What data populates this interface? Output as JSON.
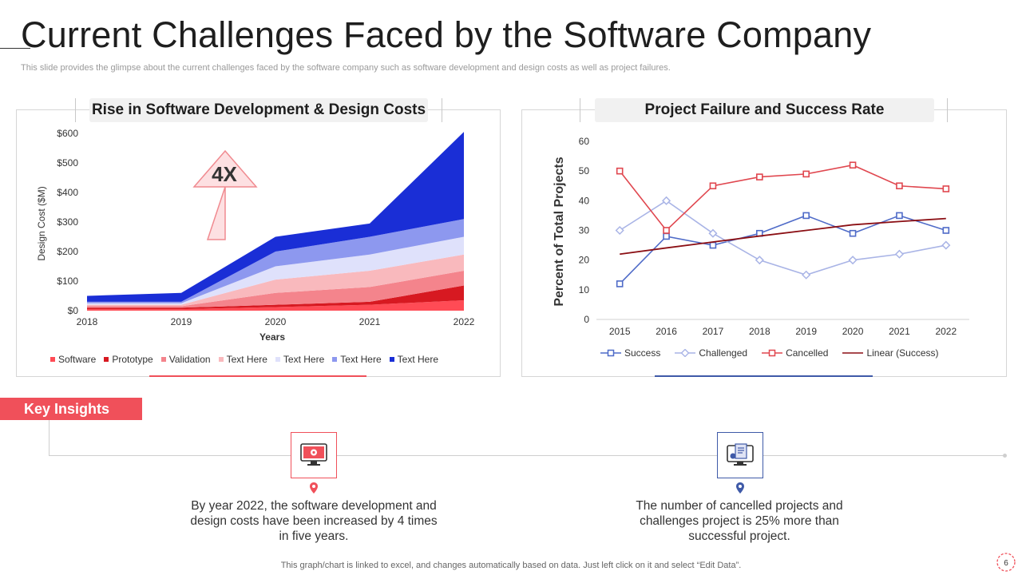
{
  "slide": {
    "title": "Current Challenges Faced by the Software Company",
    "subtitle": "This slide provides the glimpse about the current challenges faced by the software company such as software development and design costs as well as project failures.",
    "footer": "This graph/chart is linked to excel,  and changes automatically based on data. Just left click on it and select “Edit Data”.",
    "page_number": "6"
  },
  "colors": {
    "accent_red": "#f0505a",
    "accent_blue": "#3f5aa8"
  },
  "chart_data": [
    {
      "type": "area",
      "stacked": true,
      "title": "Rise in Software Development & Design Costs",
      "xlabel": "Years",
      "ylabel": "Design Cost ($M)",
      "categories": [
        "2018",
        "2019",
        "2020",
        "2021",
        "2022"
      ],
      "ylim": [
        0,
        600
      ],
      "yticks": [
        "$0",
        "$100",
        "$200",
        "$300",
        "$400",
        "$500",
        "$600"
      ],
      "annotation": "4X",
      "series": [
        {
          "name": "Software",
          "color": "#ff4b55",
          "values": [
            5,
            5,
            12,
            20,
            35
          ]
        },
        {
          "name": "Prototype",
          "color": "#d71921",
          "values": [
            5,
            5,
            8,
            10,
            50
          ]
        },
        {
          "name": "Validation",
          "color": "#f4848c",
          "values": [
            5,
            5,
            40,
            50,
            50
          ]
        },
        {
          "name": "Text Here",
          "color": "#f9b9bd",
          "values": [
            5,
            5,
            45,
            55,
            55
          ]
        },
        {
          "name": "Text Here",
          "color": "#dfe1fb",
          "values": [
            5,
            5,
            45,
            55,
            60
          ]
        },
        {
          "name": "Text Here",
          "color": "#8d98ef",
          "values": [
            5,
            5,
            50,
            60,
            60
          ]
        },
        {
          "name": "Text Here",
          "color": "#1a2ed6",
          "values": [
            20,
            30,
            50,
            45,
            295
          ]
        }
      ]
    },
    {
      "type": "line",
      "title": "Project Failure and Success Rate",
      "ylabel": "Percent of Total Projects",
      "categories": [
        "2015",
        "2016",
        "2017",
        "2018",
        "2019",
        "2020",
        "2021",
        "2022"
      ],
      "ylim": [
        0,
        60
      ],
      "yticks": [
        "0",
        "10",
        "20",
        "30",
        "40",
        "50",
        "60"
      ],
      "series": [
        {
          "name": "Success",
          "color": "#4f6bc8",
          "marker": "square",
          "values": [
            12,
            28,
            25,
            29,
            35,
            29,
            35,
            30
          ]
        },
        {
          "name": "Challenged",
          "color": "#a9b4e6",
          "marker": "diamond",
          "values": [
            30,
            40,
            29,
            20,
            15,
            20,
            22,
            25
          ]
        },
        {
          "name": "Cancelled",
          "color": "#e0474f",
          "marker": "square",
          "values": [
            50,
            30,
            45,
            48,
            49,
            52,
            45,
            44
          ]
        },
        {
          "name": "Linear (Success)",
          "color": "#8b0f14",
          "marker": "none",
          "values": [
            22,
            24.1,
            26.1,
            28.1,
            30,
            31.9,
            33,
            34
          ]
        }
      ]
    }
  ],
  "insights": {
    "label": "Key Insights",
    "items": [
      {
        "text": "By year 2022, the software development and design costs have been increased by 4 times in five years."
      },
      {
        "text": "The number of cancelled projects and challenges project is 25% more than successful project."
      }
    ]
  }
}
